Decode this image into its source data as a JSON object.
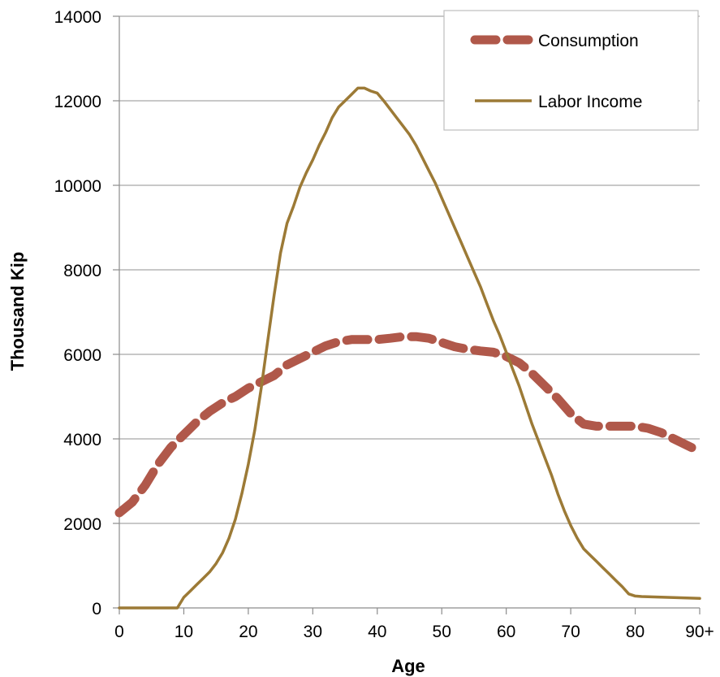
{
  "chart_data": {
    "type": "line",
    "title": "",
    "xlabel": "Age",
    "ylabel": "Thousand Kip",
    "xlim": [
      0,
      90
    ],
    "ylim": [
      0,
      14000
    ],
    "x_ticks": [
      0,
      10,
      20,
      30,
      40,
      50,
      60,
      70,
      80,
      90
    ],
    "x_tick_labels": [
      "0",
      "10",
      "20",
      "30",
      "40",
      "50",
      "60",
      "70",
      "80",
      "90+"
    ],
    "y_ticks": [
      0,
      2000,
      4000,
      6000,
      8000,
      10000,
      12000,
      14000
    ],
    "y_tick_labels": [
      "0",
      "2000",
      "4000",
      "6000",
      "8000",
      "10000",
      "12000",
      "14000"
    ],
    "grid": "horizontal",
    "legend_position": "top-right",
    "series": [
      {
        "name": "Consumption",
        "color": "#B0584A",
        "style": "dashed",
        "x": [
          0,
          2,
          4,
          6,
          8,
          10,
          12,
          14,
          16,
          18,
          20,
          22,
          24,
          26,
          28,
          30,
          32,
          34,
          36,
          38,
          40,
          42,
          44,
          46,
          48,
          50,
          52,
          54,
          56,
          58,
          60,
          62,
          64,
          66,
          68,
          70,
          72,
          74,
          76,
          78,
          80,
          82,
          84,
          86,
          88,
          90
        ],
        "values": [
          2250,
          2500,
          2900,
          3400,
          3800,
          4100,
          4400,
          4650,
          4850,
          5000,
          5200,
          5350,
          5500,
          5750,
          5900,
          6050,
          6200,
          6300,
          6350,
          6350,
          6350,
          6380,
          6420,
          6420,
          6380,
          6280,
          6180,
          6120,
          6080,
          6050,
          5950,
          5800,
          5550,
          5250,
          4950,
          4600,
          4350,
          4300,
          4300,
          4300,
          4300,
          4250,
          4150,
          4000,
          3850,
          3700
        ]
      },
      {
        "name": "Labor Income",
        "color": "#9C7A36",
        "style": "solid",
        "x": [
          0,
          1,
          2,
          3,
          4,
          5,
          6,
          7,
          8,
          9,
          10,
          11,
          12,
          13,
          14,
          15,
          16,
          17,
          18,
          19,
          20,
          21,
          22,
          23,
          24,
          25,
          26,
          27,
          28,
          29,
          30,
          31,
          32,
          33,
          34,
          35,
          36,
          37,
          38,
          39,
          40,
          41,
          42,
          43,
          44,
          45,
          46,
          47,
          48,
          49,
          50,
          51,
          52,
          53,
          54,
          55,
          56,
          57,
          58,
          59,
          60,
          61,
          62,
          63,
          64,
          65,
          66,
          67,
          68,
          69,
          70,
          71,
          72,
          73,
          74,
          75,
          76,
          77,
          78,
          79,
          80,
          81,
          82,
          83,
          84,
          85,
          86,
          87,
          88,
          89,
          90
        ],
        "values": [
          0,
          0,
          0,
          0,
          0,
          0,
          0,
          0,
          0,
          0,
          250,
          400,
          550,
          700,
          850,
          1050,
          1300,
          1650,
          2100,
          2700,
          3400,
          4200,
          5200,
          6300,
          7400,
          8400,
          9100,
          9500,
          9950,
          10300,
          10600,
          10950,
          11250,
          11600,
          11850,
          12000,
          12150,
          12300,
          12300,
          12230,
          12180,
          12000,
          11800,
          11600,
          11400,
          11200,
          10950,
          10650,
          10350,
          10050,
          9700,
          9350,
          9000,
          8650,
          8300,
          7950,
          7600,
          7200,
          6800,
          6450,
          6050,
          5650,
          5250,
          4800,
          4350,
          3950,
          3550,
          3150,
          2700,
          2300,
          1950,
          1650,
          1400,
          1250,
          1100,
          950,
          800,
          650,
          500,
          330,
          280,
          270,
          265,
          260,
          255,
          250,
          245,
          240,
          235,
          230,
          225
        ]
      }
    ]
  }
}
